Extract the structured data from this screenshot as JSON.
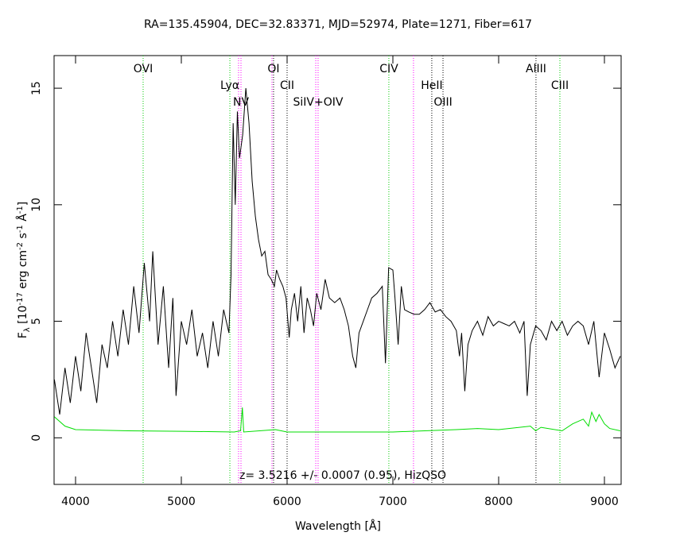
{
  "chart_data": {
    "type": "line",
    "title": "RA=135.45904, DEC=32.83371, MJD=52974, Plate=1271, Fiber=617",
    "xlabel": "Wavelength [Å]",
    "ylabel": [
      {
        "text": "F",
        "shift": "none"
      },
      {
        "text": "λ",
        "shift": "sub"
      },
      {
        "text": " [10",
        "shift": "none"
      },
      {
        "text": "-17",
        "shift": "sup"
      },
      {
        "text": " erg cm",
        "shift": "none"
      },
      {
        "text": "-2",
        "shift": "sup"
      },
      {
        "text": " s",
        "shift": "none"
      },
      {
        "text": "-1",
        "shift": "sup"
      },
      {
        "text": " Å",
        "shift": "none"
      },
      {
        "text": "-1",
        "shift": "sup"
      },
      {
        "text": "]",
        "shift": "none"
      }
    ],
    "annotation": "z= 3.5216 +/- 0.0007 (0.95), HizQSO",
    "xlim": [
      3797,
      9158
    ],
    "ylim": [
      -2,
      16.4
    ],
    "xticks": [
      4000,
      5000,
      6000,
      7000,
      8000,
      9000
    ],
    "yticks": [
      0,
      5,
      10,
      15
    ],
    "series": [
      {
        "color": "#000000",
        "x": [
          3800,
          3850,
          3900,
          3950,
          4000,
          4050,
          4100,
          4150,
          4200,
          4250,
          4300,
          4350,
          4400,
          4450,
          4500,
          4550,
          4600,
          4650,
          4700,
          4730,
          4780,
          4830,
          4880,
          4920,
          4950,
          5000,
          5050,
          5100,
          5150,
          5200,
          5250,
          5300,
          5350,
          5400,
          5450,
          5470,
          5490,
          5510,
          5530,
          5550,
          5580,
          5610,
          5640,
          5670,
          5700,
          5730,
          5760,
          5790,
          5820,
          5850,
          5880,
          5900,
          5930,
          5960,
          5990,
          6020,
          6040,
          6070,
          6100,
          6130,
          6160,
          6190,
          6220,
          6250,
          6280,
          6320,
          6360,
          6400,
          6450,
          6500,
          6540,
          6580,
          6620,
          6650,
          6680,
          6720,
          6760,
          6800,
          6850,
          6900,
          6930,
          6960,
          7000,
          7020,
          7050,
          7080,
          7110,
          7150,
          7200,
          7250,
          7300,
          7350,
          7400,
          7450,
          7500,
          7550,
          7600,
          7630,
          7650,
          7680,
          7710,
          7750,
          7800,
          7850,
          7900,
          7950,
          8000,
          8050,
          8100,
          8150,
          8200,
          8240,
          8270,
          8300,
          8350,
          8400,
          8450,
          8500,
          8550,
          8600,
          8650,
          8700,
          8750,
          8800,
          8850,
          8900,
          8950,
          9000,
          9050,
          9100,
          9150
        ],
        "values": [
          2.5,
          1.0,
          3.0,
          1.5,
          3.5,
          2.0,
          4.5,
          3.0,
          1.5,
          4.0,
          3.0,
          5.0,
          3.5,
          5.5,
          4.0,
          6.5,
          4.5,
          7.5,
          5.0,
          8.0,
          4.0,
          6.5,
          3.0,
          6.0,
          1.8,
          5.0,
          4.0,
          5.5,
          3.5,
          4.5,
          3.0,
          5.0,
          3.5,
          5.5,
          4.5,
          7.0,
          13.5,
          10.0,
          14.0,
          12.0,
          13.0,
          15.0,
          13.5,
          11.0,
          9.5,
          8.5,
          7.8,
          8.0,
          7.0,
          6.8,
          6.5,
          7.2,
          6.8,
          6.5,
          6.0,
          4.3,
          5.5,
          6.2,
          5.0,
          6.5,
          4.5,
          6.0,
          5.5,
          4.8,
          6.2,
          5.5,
          6.8,
          6.0,
          5.8,
          6.0,
          5.5,
          4.8,
          3.5,
          3.0,
          4.5,
          5.0,
          5.5,
          6.0,
          6.2,
          6.5,
          3.2,
          7.3,
          7.2,
          6.0,
          4.0,
          6.5,
          5.5,
          5.4,
          5.3,
          5.3,
          5.5,
          5.8,
          5.4,
          5.5,
          5.2,
          5.0,
          4.6,
          3.5,
          4.5,
          2.0,
          4.0,
          4.6,
          5.0,
          4.4,
          5.2,
          4.8,
          5.0,
          4.9,
          4.8,
          5.0,
          4.5,
          5.0,
          1.8,
          4.0,
          4.8,
          4.6,
          4.2,
          5.0,
          4.6,
          5.0,
          4.4,
          4.8,
          5.0,
          4.8,
          4.0,
          5.0,
          2.6,
          4.5,
          3.8,
          3.0,
          3.5
        ]
      },
      {
        "color": "#00dd00",
        "x": [
          3800,
          3900,
          4000,
          4500,
          5000,
          5500,
          5560,
          5577,
          5590,
          5890,
          6000,
          6300,
          7000,
          7300,
          7600,
          7800,
          8000,
          8300,
          8350,
          8400,
          8600,
          8700,
          8800,
          8850,
          8880,
          8920,
          8950,
          9000,
          9050,
          9150
        ],
        "values": [
          0.9,
          0.5,
          0.35,
          0.3,
          0.28,
          0.25,
          0.3,
          1.3,
          0.25,
          0.35,
          0.25,
          0.25,
          0.25,
          0.3,
          0.35,
          0.4,
          0.35,
          0.5,
          0.3,
          0.45,
          0.3,
          0.6,
          0.8,
          0.5,
          1.1,
          0.7,
          1.0,
          0.6,
          0.4,
          0.3
        ]
      }
    ],
    "lines": [
      {
        "x": 4639,
        "label": "OVI",
        "color": "#00cc00"
      },
      {
        "x": 5459,
        "label": "Lyα",
        "color": "#00cc00"
      },
      {
        "x": 5541,
        "color": "#ff00ff"
      },
      {
        "x": 5564,
        "label": "NV",
        "color": "#ff00ff"
      },
      {
        "x": 5857,
        "color": "#ff00ff"
      },
      {
        "x": 5872,
        "label": "OI",
        "color": "#000000"
      },
      {
        "x": 6000,
        "label": "CII",
        "color": "#000000"
      },
      {
        "x": 6271,
        "color": "#ff00ff"
      },
      {
        "x": 6293,
        "label": "SiIV+OIV",
        "color": "#ff00ff"
      },
      {
        "x": 6962,
        "label": "CIV",
        "color": "#00cc00"
      },
      {
        "x": 7195,
        "color": "#ff00ff"
      },
      {
        "x": 7368,
        "label": "HeII",
        "color": "#000000"
      },
      {
        "x": 7474,
        "label": "OIII",
        "color": "#000000"
      },
      {
        "x": 8353,
        "label": "AlIII",
        "color": "#000000"
      },
      {
        "x": 8579,
        "label": "CIII",
        "color": "#00cc00"
      }
    ]
  }
}
